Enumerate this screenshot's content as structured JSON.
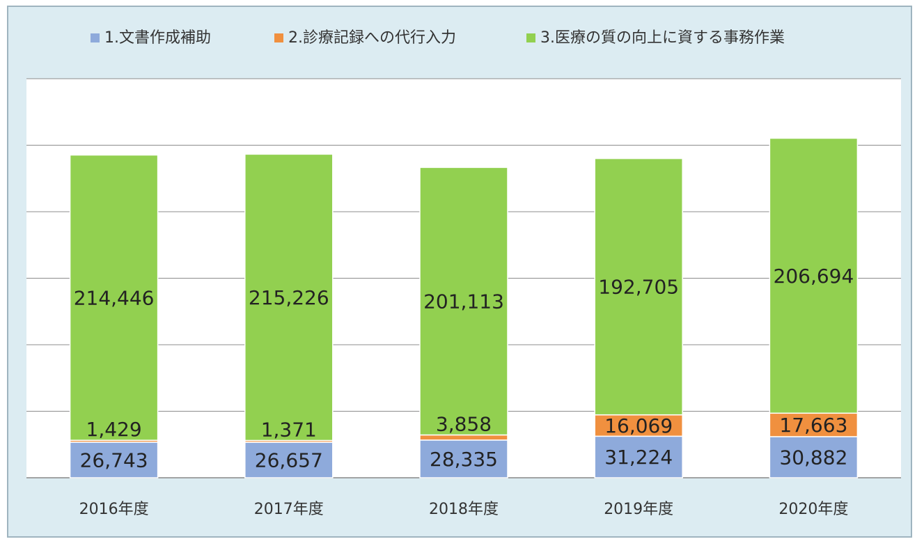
{
  "chart_data": {
    "type": "bar",
    "stacked": true,
    "categories": [
      "2016年度",
      "2017年度",
      "2018年度",
      "2019年度",
      "2020年度"
    ],
    "series": [
      {
        "name": "1.文書作成補助",
        "color": "#8eaadb",
        "values": [
          26743,
          26657,
          28335,
          31224,
          30882
        ]
      },
      {
        "name": "2.診療記録への代行入力",
        "color": "#f0903f",
        "values": [
          1429,
          1371,
          3858,
          16069,
          17663
        ]
      },
      {
        "name": "3.医療の質の向上に資する事務作業",
        "color": "#92d050",
        "values": [
          214446,
          215226,
          201113,
          192705,
          206694
        ]
      }
    ],
    "ylim": [
      0,
      300000
    ],
    "grid": true,
    "legend": "top"
  }
}
